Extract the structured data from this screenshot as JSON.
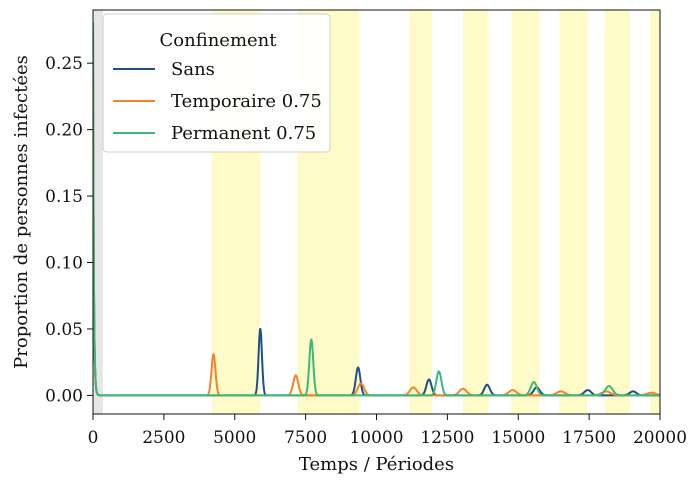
{
  "chart_data": {
    "type": "line",
    "xlabel": "Temps / Périodes",
    "ylabel": "Proportion de personnes infectées",
    "xlim": [
      0,
      20000
    ],
    "ylim": [
      -0.014,
      0.29
    ],
    "xticks": [
      0,
      2500,
      5000,
      7500,
      10000,
      12500,
      15000,
      17500,
      20000
    ],
    "xtick_labels": [
      "0",
      "2500",
      "5000",
      "7500",
      "10000",
      "12500",
      "15000",
      "17500",
      "20000"
    ],
    "yticks": [
      0.0,
      0.05,
      0.1,
      0.15,
      0.2,
      0.25
    ],
    "ytick_labels": [
      "0.00",
      "0.05",
      "0.10",
      "0.15",
      "0.20",
      "0.25"
    ],
    "grid": false,
    "legend": {
      "title": "Confinement",
      "placement": "top-left"
    },
    "shaded_regions": [
      {
        "start": 0,
        "end": 350,
        "color": "#e6e6e6"
      },
      {
        "start": 4200,
        "end": 5900,
        "color": "#fffbc8"
      },
      {
        "start": 7200,
        "end": 9400,
        "color": "#fffbc8"
      },
      {
        "start": 11150,
        "end": 11950,
        "color": "#fffbc8"
      },
      {
        "start": 13050,
        "end": 13950,
        "color": "#fffbc8"
      },
      {
        "start": 14750,
        "end": 15750,
        "color": "#fffbc8"
      },
      {
        "start": 16450,
        "end": 17450,
        "color": "#fffbc8"
      },
      {
        "start": 18050,
        "end": 18950,
        "color": "#fffbc8"
      },
      {
        "start": 19650,
        "end": 20000,
        "color": "#fffbc8"
      }
    ],
    "series": [
      {
        "name": "Sans",
        "color": "#1f4e8c",
        "initial_peak": {
          "x": 0,
          "y": 0.28
        },
        "peaks": [
          {
            "x": 5900,
            "y": 0.05,
            "width": 60
          },
          {
            "x": 9350,
            "y": 0.021,
            "width": 80
          },
          {
            "x": 11850,
            "y": 0.012,
            "width": 90
          },
          {
            "x": 13900,
            "y": 0.008,
            "width": 100
          },
          {
            "x": 15650,
            "y": 0.006,
            "width": 110
          },
          {
            "x": 17450,
            "y": 0.004,
            "width": 120
          },
          {
            "x": 19050,
            "y": 0.003,
            "width": 120
          }
        ]
      },
      {
        "name": "Temporaire 0.75",
        "color": "#f5822a",
        "initial_peak": {
          "x": 0,
          "y": 0.28
        },
        "peaks": [
          {
            "x": 4250,
            "y": 0.031,
            "width": 70
          },
          {
            "x": 7150,
            "y": 0.015,
            "width": 90
          },
          {
            "x": 9450,
            "y": 0.009,
            "width": 110
          },
          {
            "x": 11300,
            "y": 0.006,
            "width": 120
          },
          {
            "x": 13050,
            "y": 0.005,
            "width": 130
          },
          {
            "x": 14800,
            "y": 0.004,
            "width": 140
          },
          {
            "x": 16500,
            "y": 0.003,
            "width": 150
          },
          {
            "x": 18100,
            "y": 0.003,
            "width": 160
          },
          {
            "x": 19700,
            "y": 0.002,
            "width": 160
          }
        ]
      },
      {
        "name": "Permanent 0.75",
        "color": "#3cb878",
        "initial_peak": {
          "x": 0,
          "y": 0.28
        },
        "peaks": [
          {
            "x": 7700,
            "y": 0.042,
            "width": 70
          },
          {
            "x": 12200,
            "y": 0.018,
            "width": 90
          },
          {
            "x": 15550,
            "y": 0.01,
            "width": 110
          },
          {
            "x": 18200,
            "y": 0.007,
            "width": 130
          }
        ]
      }
    ]
  }
}
